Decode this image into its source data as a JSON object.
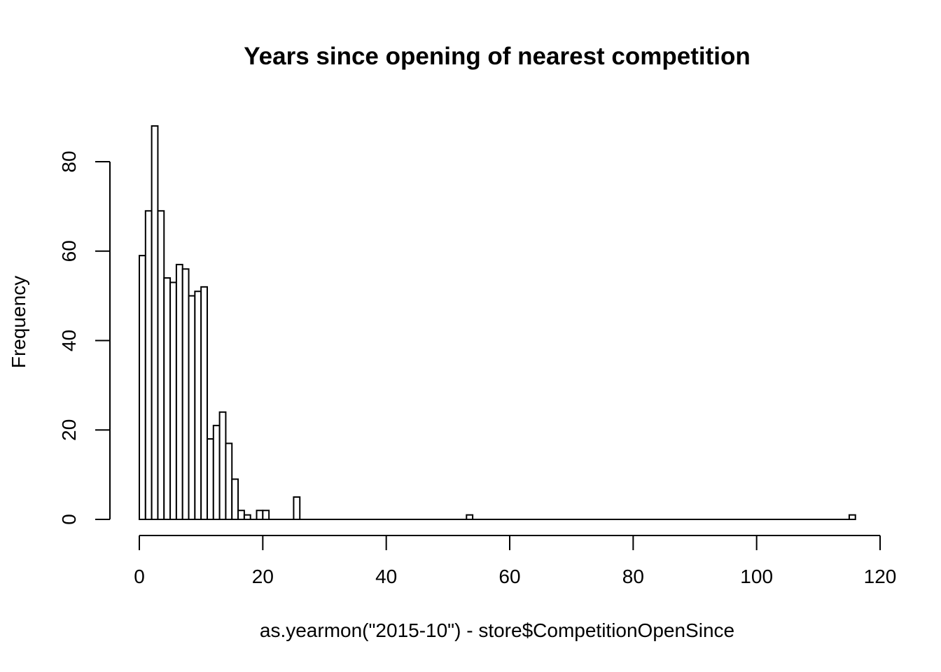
{
  "chart_data": {
    "type": "bar",
    "title": "Years since opening of nearest competition",
    "xlabel": "as.yearmon(\"2015-10\") - store$CompetitionOpenSince",
    "ylabel": "Frequency",
    "xlim": [
      0,
      120
    ],
    "ylim": [
      0,
      88
    ],
    "x_ticks": [
      0,
      20,
      40,
      60,
      80,
      100,
      120
    ],
    "y_ticks": [
      0,
      20,
      40,
      60,
      80
    ],
    "bin_width": 1,
    "grid": false,
    "bins": [
      {
        "start": 0,
        "end": 1,
        "count": 59
      },
      {
        "start": 1,
        "end": 2,
        "count": 69
      },
      {
        "start": 2,
        "end": 3,
        "count": 88
      },
      {
        "start": 3,
        "end": 4,
        "count": 69
      },
      {
        "start": 4,
        "end": 5,
        "count": 54
      },
      {
        "start": 5,
        "end": 6,
        "count": 53
      },
      {
        "start": 6,
        "end": 7,
        "count": 57
      },
      {
        "start": 7,
        "end": 8,
        "count": 56
      },
      {
        "start": 8,
        "end": 9,
        "count": 50
      },
      {
        "start": 9,
        "end": 10,
        "count": 51
      },
      {
        "start": 10,
        "end": 11,
        "count": 52
      },
      {
        "start": 11,
        "end": 12,
        "count": 18
      },
      {
        "start": 12,
        "end": 13,
        "count": 21
      },
      {
        "start": 13,
        "end": 14,
        "count": 24
      },
      {
        "start": 14,
        "end": 15,
        "count": 17
      },
      {
        "start": 15,
        "end": 16,
        "count": 9
      },
      {
        "start": 16,
        "end": 17,
        "count": 2
      },
      {
        "start": 17,
        "end": 18,
        "count": 1
      },
      {
        "start": 18,
        "end": 19,
        "count": 0
      },
      {
        "start": 19,
        "end": 20,
        "count": 2
      },
      {
        "start": 20,
        "end": 21,
        "count": 2
      },
      {
        "start": 21,
        "end": 22,
        "count": 0
      },
      {
        "start": 22,
        "end": 23,
        "count": 0
      },
      {
        "start": 23,
        "end": 24,
        "count": 0
      },
      {
        "start": 24,
        "end": 25,
        "count": 0
      },
      {
        "start": 25,
        "end": 26,
        "count": 5
      },
      {
        "start": 53,
        "end": 54,
        "count": 1
      },
      {
        "start": 115,
        "end": 116,
        "count": 1
      }
    ],
    "hist_range": [
      0,
      116
    ]
  }
}
